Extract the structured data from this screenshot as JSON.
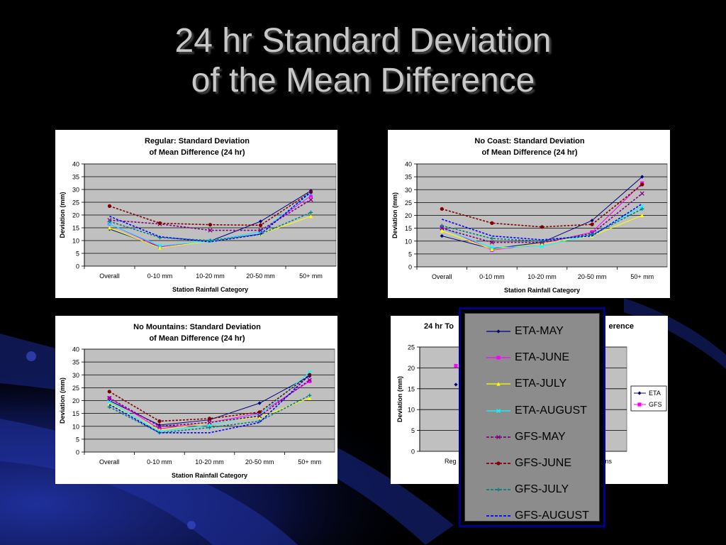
{
  "slide": {
    "title_line1": "24 hr Standard Deviation",
    "title_line2": "of the Mean Difference"
  },
  "colors": {
    "eta_may": "#000080",
    "eta_june": "#ff00ff",
    "eta_july": "#ffff00",
    "eta_august": "#00ffff",
    "gfs_may": "#800080",
    "gfs_june": "#800000",
    "gfs_july": "#008080",
    "gfs_august": "#0000ff",
    "plot_bg": "#c0c0c0"
  },
  "legend": {
    "items": [
      {
        "name": "ETA-MAY",
        "color": "#000080",
        "dash": false,
        "marker": "diamond"
      },
      {
        "name": "ETA-JUNE",
        "color": "#ff00ff",
        "dash": false,
        "marker": "square"
      },
      {
        "name": "ETA-JULY",
        "color": "#ffff00",
        "dash": false,
        "marker": "triangle"
      },
      {
        "name": "ETA-AUGUST",
        "color": "#00ffff",
        "dash": false,
        "marker": "cross"
      },
      {
        "name": "GFS-MAY",
        "color": "#800080",
        "dash": true,
        "marker": "star"
      },
      {
        "name": "GFS-JUNE",
        "color": "#800000",
        "dash": true,
        "marker": "circle"
      },
      {
        "name": "GFS-JULY",
        "color": "#008080",
        "dash": true,
        "marker": "plus"
      },
      {
        "name": "GFS-AUGUST",
        "color": "#0000ff",
        "dash": true,
        "marker": "none"
      }
    ]
  },
  "chart_data": [
    {
      "type": "line",
      "title": "Regular:  Standard Deviation",
      "title2": "of Mean Difference (24 hr)",
      "xlabel": "Station Rainfall Category",
      "ylabel": "Deviation (mm)",
      "ylim": [
        0,
        40
      ],
      "yticks": [
        "0",
        "5",
        "10",
        "15",
        "20",
        "25",
        "30",
        "35",
        "40"
      ],
      "categories": [
        "Overall",
        "0-10 mm",
        "10-20 mm",
        "20-50 mm",
        "50+ mm"
      ],
      "grid": true,
      "series": [
        {
          "name": "ETA-MAY",
          "values": [
            14.5,
            7.5,
            9.8,
            17.5,
            29.5
          ]
        },
        {
          "name": "ETA-JUNE",
          "values": [
            16.5,
            7.5,
            9.8,
            13.5,
            27.5
          ]
        },
        {
          "name": "ETA-JULY",
          "values": [
            15,
            7.2,
            9.8,
            12.5,
            19.5
          ]
        },
        {
          "name": "ETA-AUGUST",
          "values": [
            16.5,
            8,
            9.8,
            13.5,
            28.5
          ]
        },
        {
          "name": "GFS-MAY",
          "values": [
            18,
            16.5,
            14,
            14,
            26
          ]
        },
        {
          "name": "GFS-JUNE",
          "values": [
            23.5,
            16.8,
            16.2,
            16,
            29
          ]
        },
        {
          "name": "GFS-JULY",
          "values": [
            17.5,
            11.2,
            10,
            12.5,
            21
          ]
        },
        {
          "name": "GFS-AUGUST",
          "values": [
            19.5,
            11.5,
            9.5,
            12.5,
            29
          ]
        }
      ]
    },
    {
      "type": "line",
      "title": "No Coast:  Standard Deviation",
      "title2": "of Mean Difference (24 hr)",
      "xlabel": "Station Rainfall Category",
      "ylabel": "Deviation (mm)",
      "ylim": [
        0,
        40
      ],
      "yticks": [
        "0",
        "5",
        "10",
        "15",
        "20",
        "25",
        "30",
        "35",
        "40"
      ],
      "categories": [
        "Overall",
        "0-10 mm",
        "10-20 mm",
        "20-50 mm",
        "50+ mm"
      ],
      "grid": true,
      "series": [
        {
          "name": "ETA-MAY",
          "values": [
            12,
            7,
            9.5,
            18,
            35
          ]
        },
        {
          "name": "ETA-JUNE",
          "values": [
            15.5,
            6.5,
            9,
            13.5,
            32.5
          ]
        },
        {
          "name": "ETA-JULY",
          "values": [
            14,
            6.8,
            9,
            12,
            20
          ]
        },
        {
          "name": "ETA-AUGUST",
          "values": [
            15,
            7.5,
            8,
            12.5,
            23.5
          ]
        },
        {
          "name": "GFS-MAY",
          "values": [
            15,
            9.5,
            9.5,
            13,
            28.5
          ]
        },
        {
          "name": "GFS-JUNE",
          "values": [
            22.5,
            17,
            15.5,
            16.5,
            32
          ]
        },
        {
          "name": "GFS-JULY",
          "values": [
            16,
            11,
            10,
            12.5,
            22.5
          ]
        },
        {
          "name": "GFS-AUGUST",
          "values": [
            18.5,
            12,
            10.5,
            12,
            24.5
          ]
        }
      ]
    },
    {
      "type": "line",
      "title": "No Mountains:  Standard Deviation",
      "title2": "of Mean Difference (24 hr)",
      "xlabel": "Station Rainfall Category",
      "ylabel": "Deviation (mm)",
      "ylim": [
        0,
        40
      ],
      "yticks": [
        "0",
        "5",
        "10",
        "15",
        "20",
        "25",
        "30",
        "35",
        "40"
      ],
      "categories": [
        "Overall",
        "0-10 mm",
        "10-20 mm",
        "20-50 mm",
        "50+ mm"
      ],
      "grid": true,
      "series": [
        {
          "name": "ETA-MAY",
          "values": [
            20,
            10.5,
            12.5,
            19,
            29.5
          ]
        },
        {
          "name": "ETA-JUNE",
          "values": [
            21,
            9,
            11.5,
            15,
            27.5
          ]
        },
        {
          "name": "ETA-JULY",
          "values": [
            19,
            8.5,
            11.5,
            13.5,
            21
          ]
        },
        {
          "name": "ETA-AUGUST",
          "values": [
            19.5,
            8,
            10.5,
            14.5,
            31
          ]
        },
        {
          "name": "GFS-MAY",
          "values": [
            21,
            10,
            11.5,
            14,
            28
          ]
        },
        {
          "name": "GFS-JUNE",
          "values": [
            23.5,
            12,
            13,
            15.5,
            30
          ]
        },
        {
          "name": "GFS-JULY",
          "values": [
            17.5,
            7.5,
            9.5,
            12,
            22
          ]
        },
        {
          "name": "GFS-AUGUST",
          "values": [
            18.5,
            7.5,
            7.5,
            11.5,
            30
          ]
        }
      ]
    },
    {
      "type": "line",
      "title": "24 hr To",
      "title_right": "erence",
      "ylabel": "Deviation (mm)",
      "ylim": [
        0,
        25
      ],
      "yticks": [
        "0",
        "5",
        "10",
        "15",
        "20",
        "25"
      ],
      "x_left_label": "Reg",
      "x_right_label": "ns",
      "grid": true,
      "legend_position": "right",
      "series": [
        {
          "name": "ETA",
          "marker": "diamond",
          "color": "#000080",
          "values": [
            16
          ]
        },
        {
          "name": "GFS",
          "marker": "square",
          "color": "#ff00ff",
          "values": [
            20.5
          ]
        }
      ]
    }
  ]
}
